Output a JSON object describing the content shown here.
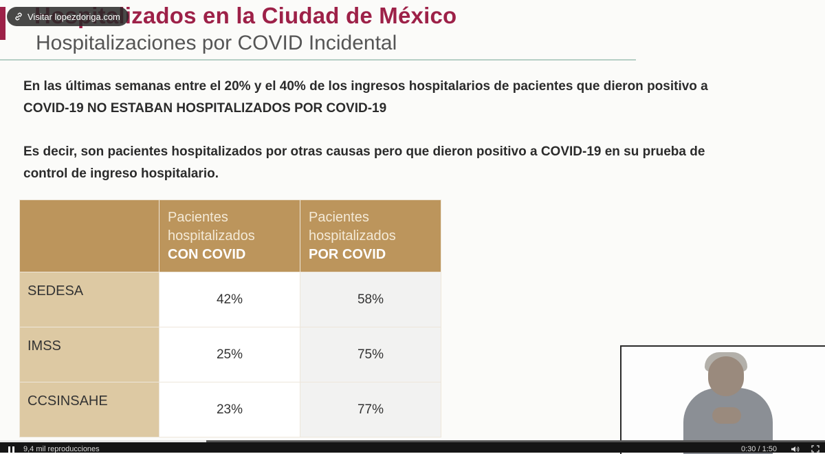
{
  "slide": {
    "title": "Hospitalizados en la Ciudad de México",
    "subtitle": "Hospitalizaciones por COVID Incidental",
    "paragraph1": "En las últimas semanas entre el 20% y el 40% de los ingresos hospitalarios de pacientes que dieron positivo a COVID-19 NO ESTABAN HOSPITALIZADOS POR COVID-19",
    "paragraph2": "Es decir, son pacientes hospitalizados por otras causas pero que dieron positivo a COVID-19 en su prueba de control de ingreso hospitalario.",
    "table": {
      "col1": {
        "line1": "Pacientes",
        "line2": "hospitalizados",
        "line3": "CON COVID"
      },
      "col2": {
        "line1": "Pacientes",
        "line2": "hospitalizados",
        "line3": "POR COVID"
      },
      "rows": [
        {
          "label": "SEDESA",
          "con": "42%",
          "por": "58%"
        },
        {
          "label": "IMSS",
          "con": "25%",
          "por": "75%"
        },
        {
          "label": "CCSINSAHE",
          "con": "23%",
          "por": "77%"
        }
      ]
    },
    "colors": {
      "title": "#9d2148",
      "header": "#bc955c",
      "row_label": "#ddc9a3"
    }
  },
  "overlay": {
    "visit_link": "Visitar lopezdoriga.com",
    "link_icon": "link-icon"
  },
  "player": {
    "views": "9,4 mil reproducciones",
    "time": "0:30 / 1:50",
    "progress": 0.25,
    "icons": [
      "pause-icon",
      "volume-icon",
      "fullscreen-icon"
    ]
  }
}
